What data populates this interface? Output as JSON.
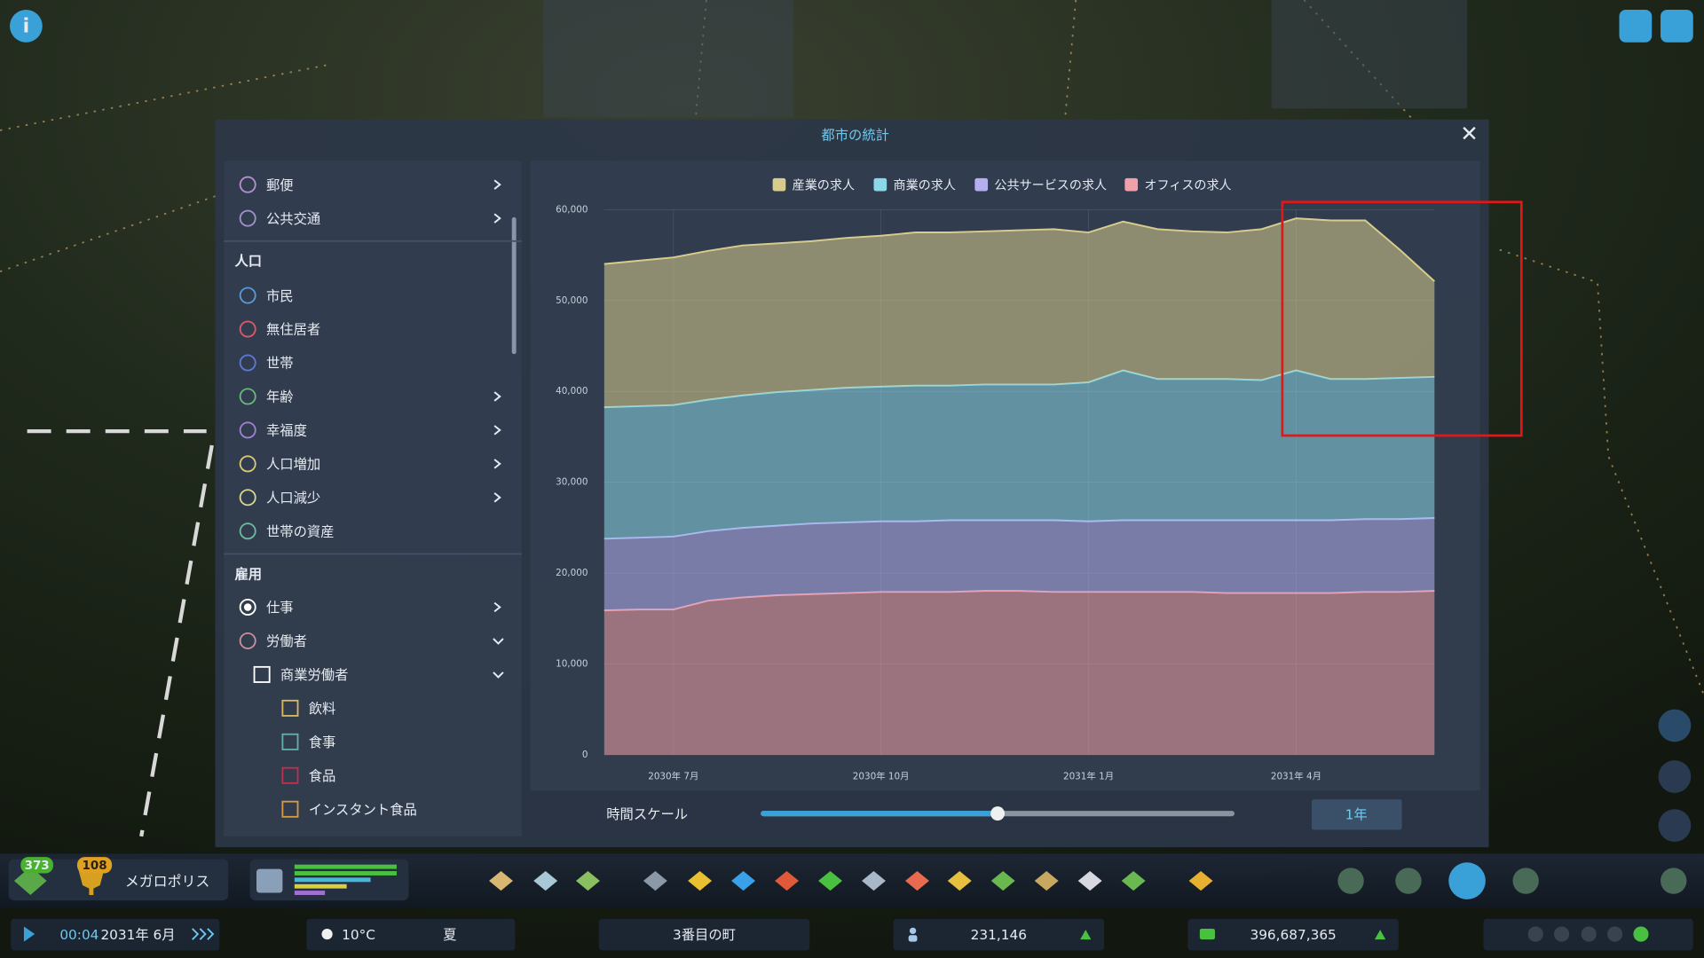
{
  "window": {
    "title": "都市の統計"
  },
  "sidebar": {
    "items": [
      {
        "label": "郵便",
        "marker": "circle",
        "color": "#b890d0",
        "chevron": "right"
      },
      {
        "label": "公共交通",
        "marker": "circle",
        "color": "#a090c8",
        "chevron": "right"
      },
      {
        "heading": "人口"
      },
      {
        "label": "市民",
        "marker": "circle",
        "color": "#5a9ad8"
      },
      {
        "label": "無住居者",
        "marker": "circle",
        "color": "#d85a6a"
      },
      {
        "label": "世帯",
        "marker": "circle",
        "color": "#5a78d8"
      },
      {
        "label": "年齢",
        "marker": "circle",
        "color": "#6ab87a",
        "chevron": "right"
      },
      {
        "label": "幸福度",
        "marker": "circle",
        "color": "#a080d0",
        "chevron": "right"
      },
      {
        "label": "人口増加",
        "marker": "circle",
        "color": "#d8c870",
        "chevron": "right"
      },
      {
        "label": "人口減少",
        "marker": "circle",
        "color": "#d8d890",
        "chevron": "right"
      },
      {
        "label": "世帯の資産",
        "marker": "circle",
        "color": "#70b8a0"
      },
      {
        "heading": "雇用"
      },
      {
        "label": "仕事",
        "marker": "circle",
        "color": "#ffffff",
        "chevron": "right",
        "selected": true
      },
      {
        "label": "労働者",
        "marker": "circle",
        "color": "#c890a0",
        "chevron": "down"
      },
      {
        "label": "商業労働者",
        "marker": "box",
        "color": "#ffffff",
        "chevron": "down",
        "level": 1
      },
      {
        "label": "飲料",
        "marker": "box",
        "color": "#d8b860",
        "level": 2
      },
      {
        "label": "食事",
        "marker": "box",
        "color": "#60b0a8",
        "level": 2
      },
      {
        "label": "食品",
        "marker": "box",
        "color": "#c03050",
        "level": 2
      },
      {
        "label": "インスタント食品",
        "marker": "box",
        "color": "#d89a40",
        "level": 2
      }
    ]
  },
  "chart_data": {
    "type": "area",
    "stacked": true,
    "grid": true,
    "categories": [
      null,
      null,
      "2030年 7月",
      null,
      null,
      null,
      null,
      null,
      "2030年 10月",
      null,
      null,
      null,
      null,
      null,
      "2031年 1月",
      null,
      null,
      null,
      null,
      null,
      "2031年 4月",
      null,
      null,
      null,
      null
    ],
    "series": [
      {
        "name": "産業の求人",
        "color": "#d8cc8c",
        "values": [
          15770,
          16010,
          16250,
          16380,
          16500,
          16370,
          16370,
          16490,
          16610,
          16850,
          16850,
          16850,
          16970,
          17090,
          16490,
          16380,
          16490,
          16250,
          16130,
          16610,
          16730,
          17450,
          17450,
          14100,
          10510
        ]
      },
      {
        "name": "商業の求人",
        "color": "#8ad8e8",
        "values": [
          14460,
          14470,
          14470,
          14460,
          14580,
          14700,
          14700,
          14820,
          14820,
          14940,
          14820,
          14940,
          14940,
          14940,
          15300,
          16490,
          15540,
          15540,
          15540,
          15420,
          16490,
          15540,
          15420,
          15540,
          15540
        ]
      },
      {
        "name": "公共サービスの求人",
        "color": "#b4b0f0",
        "values": [
          7890,
          7900,
          8020,
          7650,
          7650,
          7650,
          7770,
          7770,
          7770,
          7770,
          7890,
          7770,
          7770,
          7890,
          7770,
          7890,
          7890,
          7890,
          8010,
          8010,
          8010,
          8010,
          8010,
          8010,
          8010
        ]
      },
      {
        "name": "オフィスの求人",
        "color": "#f0a0a8",
        "values": [
          15900,
          16000,
          16000,
          16970,
          17330,
          17570,
          17690,
          17810,
          17930,
          17930,
          17930,
          18050,
          18050,
          17930,
          17930,
          17930,
          17930,
          17930,
          17810,
          17810,
          17810,
          17810,
          17930,
          17930,
          18050
        ]
      }
    ],
    "ylim": [
      0,
      60000
    ],
    "yticks": [
      0,
      {
        "value": 10000,
        "label": "10,000"
      },
      {
        "value": 20000,
        "label": "20,000"
      },
      {
        "value": 30000,
        "label": "30,000"
      },
      {
        "value": 40000,
        "label": "40,000"
      },
      {
        "value": 50000,
        "label": "50,000"
      },
      {
        "value": 60000,
        "label": "60,000"
      }
    ]
  },
  "time_scale": {
    "label": "時間スケール",
    "button": "1年"
  },
  "hud": {
    "xp": "373",
    "milestone_level": "108",
    "milestone": "メガロポリス",
    "time": "00:04",
    "date": "2031年 6月",
    "temperature": "10°C",
    "season": "夏",
    "city_name": "3番目の町",
    "population": "231,146",
    "money": "396,687,365"
  }
}
